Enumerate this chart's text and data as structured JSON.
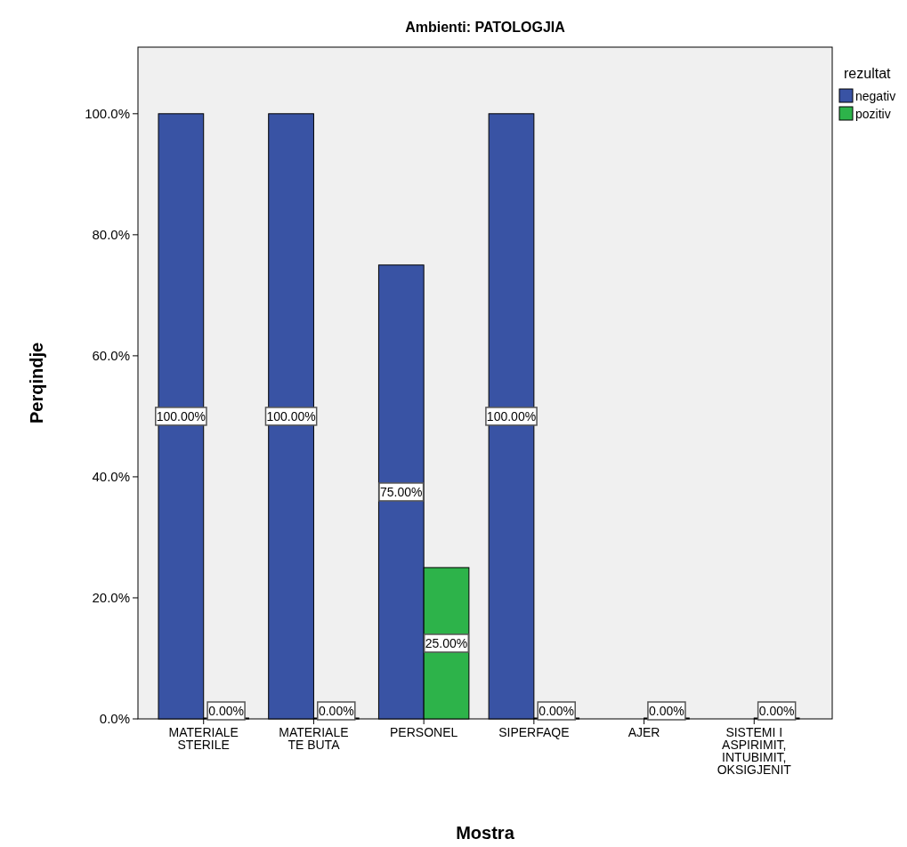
{
  "chart_data": {
    "type": "bar",
    "title": "Ambienti: PATOLOGJIA",
    "xlabel": "Mostra",
    "ylabel": "Perqindje",
    "legend_title": "rezultat",
    "legend": "top right",
    "grid": false,
    "categories": [
      "MATERIALE STERILE",
      "MATERIALE TE BUTA",
      "PERSONEL",
      "SIPERFAQE",
      "AJER",
      "SISTEMI I ASPIRIMIT, INTUBIMIT, OKSIGJENIT"
    ],
    "ylim": [
      0,
      111
    ],
    "yticks": [
      {
        "value": 0,
        "label": "0.0%"
      },
      {
        "value": 20,
        "label": "20.0%"
      },
      {
        "value": 40,
        "label": "40.0%"
      },
      {
        "value": 60,
        "label": "60.0%"
      },
      {
        "value": 80,
        "label": "80.0%"
      },
      {
        "value": 100,
        "label": "100.0%"
      }
    ],
    "series": [
      {
        "name": "negativ",
        "color": "#3953a4",
        "values": [
          100,
          100,
          75,
          100,
          null,
          null
        ],
        "value_labels": [
          "100.00%",
          "100.00%",
          "75.00%",
          "100.00%",
          null,
          null
        ]
      },
      {
        "name": "pozitiv",
        "color": "#2db34a",
        "values": [
          0,
          0,
          25,
          0,
          0,
          0
        ],
        "value_labels": [
          "0.00%",
          "0.00%",
          "25.00%",
          "0.00%",
          "0.00%",
          "0.00%"
        ]
      }
    ]
  }
}
